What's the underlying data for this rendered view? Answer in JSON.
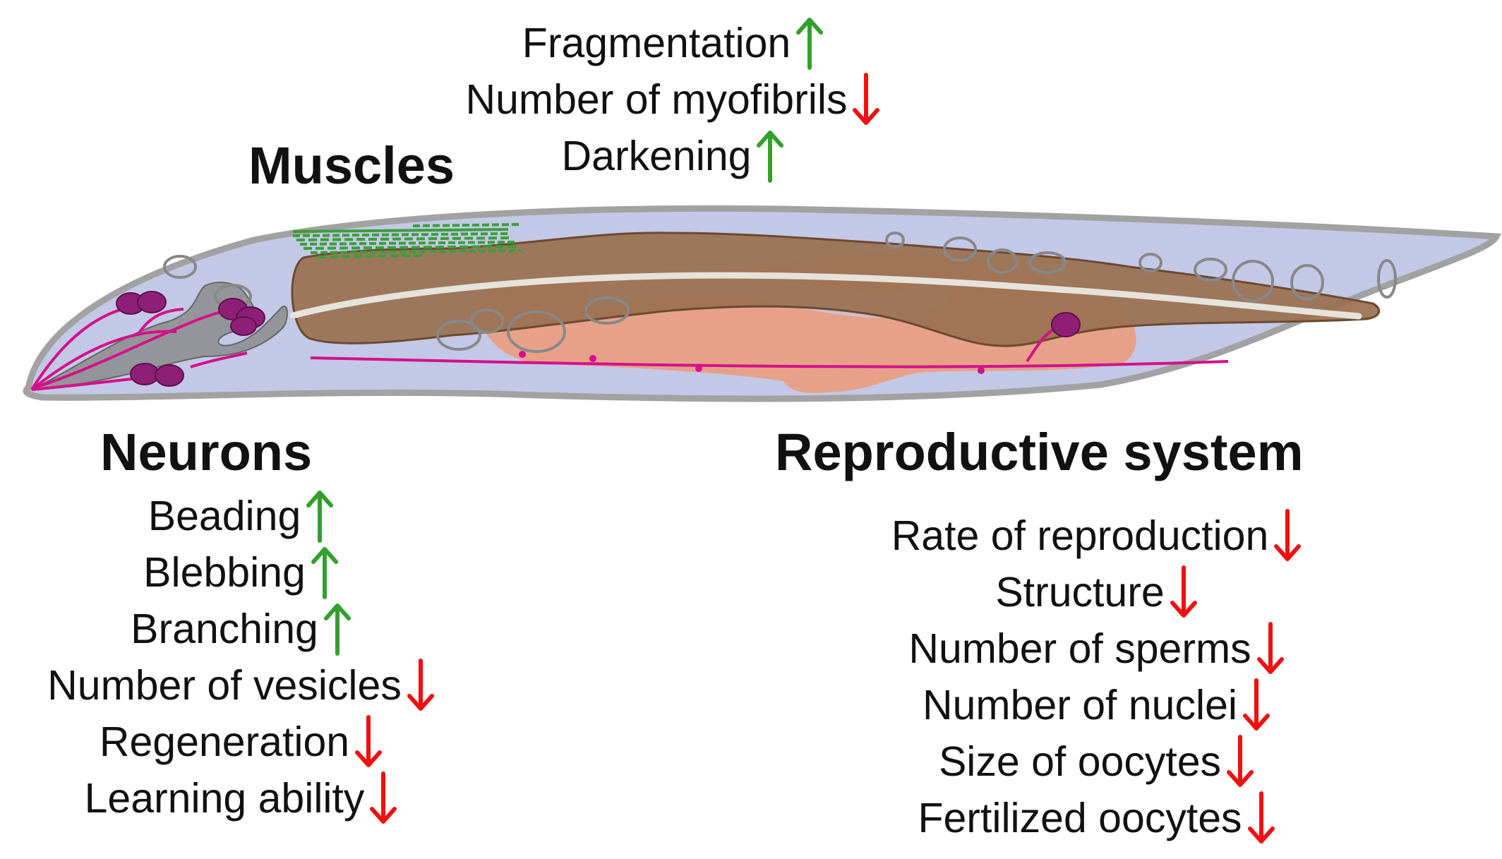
{
  "colors": {
    "up_arrow": "#33a02c",
    "down_arrow": "#f01010",
    "body_fill": "#c3c8e6",
    "body_outline": "#a2a2a2",
    "intestine": "#9a7050",
    "gonad": "#ec9c7e",
    "neurons": "#d4108a",
    "neuron_cells": "#8e1f76",
    "pharynx": "#8c8c8c",
    "muscle": "#3b9e3b"
  },
  "muscles": {
    "heading": "Muscles",
    "items": [
      {
        "label": "Fragmentation",
        "direction": "up",
        "icon": "arrow-up-icon"
      },
      {
        "label": "Number of myofibrils",
        "direction": "down",
        "icon": "arrow-down-icon"
      },
      {
        "label": "Darkening",
        "direction": "up",
        "icon": "arrow-up-icon"
      }
    ]
  },
  "neurons": {
    "heading": "Neurons",
    "items": [
      {
        "label": "Beading",
        "direction": "up",
        "icon": "arrow-up-icon"
      },
      {
        "label": "Blebbing",
        "direction": "up",
        "icon": "arrow-up-icon"
      },
      {
        "label": "Branching",
        "direction": "up",
        "icon": "arrow-up-icon"
      },
      {
        "label": "Number of vesicles",
        "direction": "down",
        "icon": "arrow-down-icon"
      },
      {
        "label": "Regeneration",
        "direction": "down",
        "icon": "arrow-down-icon"
      },
      {
        "label": "Learning ability",
        "direction": "down",
        "icon": "arrow-down-icon"
      }
    ]
  },
  "reproductive": {
    "heading": "Reproductive system",
    "items": [
      {
        "label": "Rate of reproduction",
        "direction": "down",
        "icon": "arrow-down-icon"
      },
      {
        "label": "Structure",
        "direction": "down",
        "icon": "arrow-down-icon"
      },
      {
        "label": "Number of sperms",
        "direction": "down",
        "icon": "arrow-down-icon"
      },
      {
        "label": "Number of nuclei",
        "direction": "down",
        "icon": "arrow-down-icon"
      },
      {
        "label": "Size of oocytes",
        "direction": "down",
        "icon": "arrow-down-icon"
      },
      {
        "label": "Fertilized oocytes",
        "direction": "down",
        "icon": "arrow-down-icon"
      }
    ]
  }
}
